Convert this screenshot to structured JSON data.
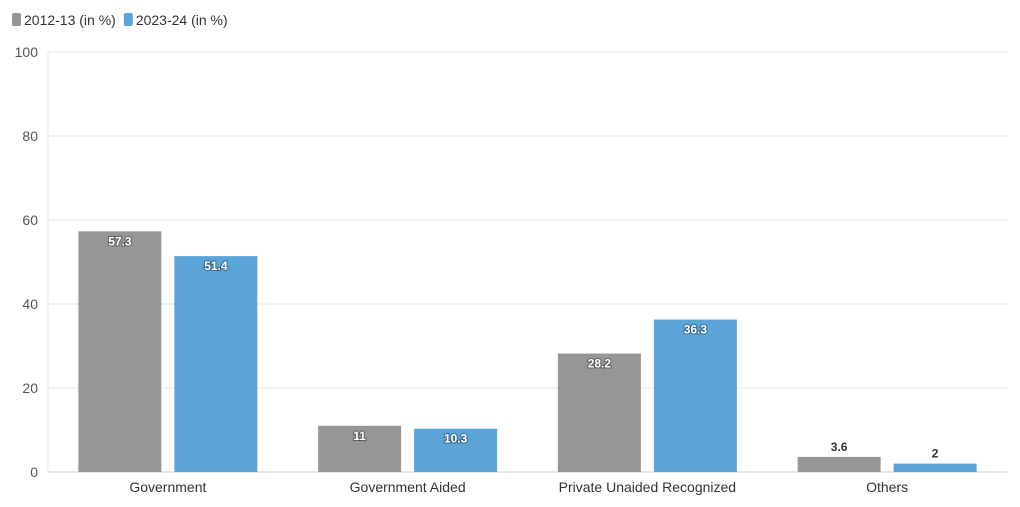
{
  "chart_data": {
    "type": "bar",
    "categories": [
      "Government",
      "Government Aided",
      "Private Unaided Recognized",
      "Others"
    ],
    "series": [
      {
        "name": "2012-13 (in %)",
        "values": [
          57.3,
          11,
          28.2,
          3.6
        ],
        "color": "#969696"
      },
      {
        "name": "2023-24 (in %)",
        "values": [
          51.4,
          10.3,
          36.3,
          2
        ],
        "color": "#5ba4d8"
      }
    ],
    "ylim": [
      0,
      100
    ],
    "yticks": [
      0,
      20,
      40,
      60,
      80,
      100
    ],
    "grid": true,
    "legend": "top-left"
  }
}
